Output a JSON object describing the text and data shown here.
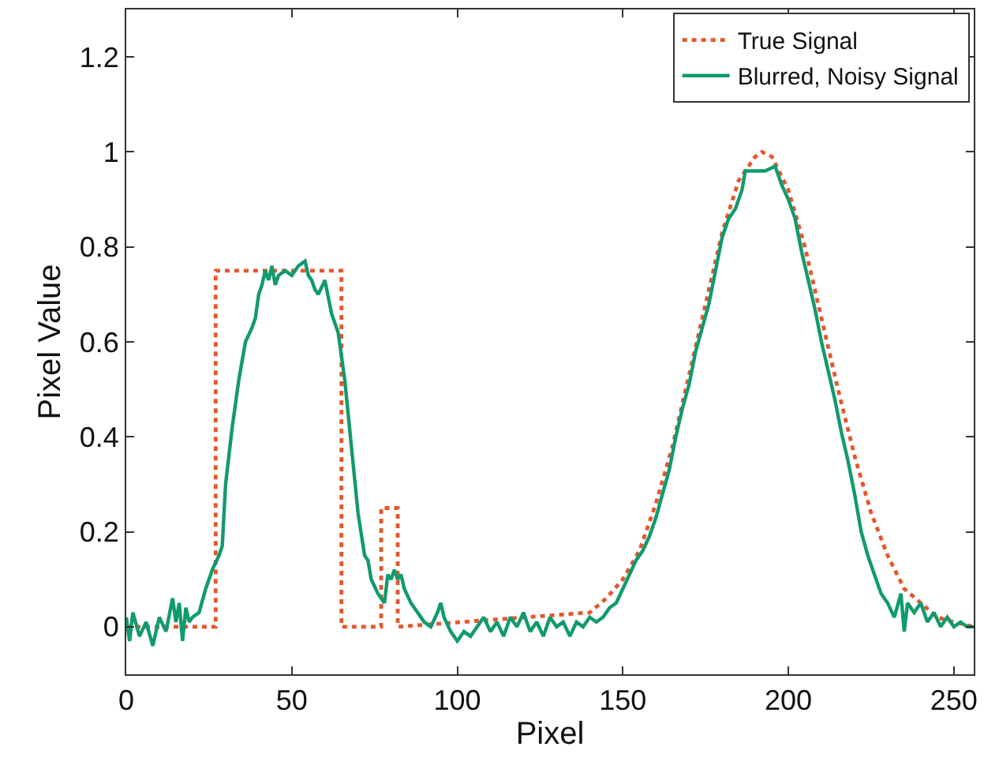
{
  "chart_data": {
    "type": "line",
    "xlabel": "Pixel",
    "ylabel": "Pixel Value",
    "xlim": [
      0,
      256
    ],
    "xticks": [
      0,
      50,
      100,
      150,
      200,
      250
    ],
    "ylim": [
      -0.1,
      1.3
    ],
    "yticks": [
      0,
      0.2,
      0.4,
      0.6,
      0.8,
      1,
      1.2
    ],
    "legend": "top right",
    "marker": "none",
    "series": [
      {
        "name": "True Signal",
        "color": "#e4572e",
        "line_style": "dotted",
        "x": [
          0,
          27,
          27,
          65,
          65,
          77,
          77,
          82,
          82,
          140,
          145,
          150,
          155,
          160,
          165,
          170,
          175,
          180,
          185,
          190,
          192,
          195,
          200,
          205,
          210,
          215,
          220,
          225,
          230,
          235,
          240,
          245,
          250,
          256
        ],
        "values": [
          0,
          0,
          0.75,
          0.75,
          0,
          0,
          0.25,
          0.25,
          0,
          0.03,
          0.06,
          0.1,
          0.16,
          0.26,
          0.38,
          0.53,
          0.68,
          0.83,
          0.94,
          0.99,
          1.0,
          0.99,
          0.92,
          0.8,
          0.65,
          0.5,
          0.36,
          0.24,
          0.15,
          0.08,
          0.05,
          0.02,
          0.01,
          0
        ]
      },
      {
        "name": "Blurred, Noisy Signal",
        "color": "#119a6e",
        "line_style": "solid",
        "x": [
          0,
          1,
          2,
          4,
          6,
          8,
          10,
          12,
          14,
          15,
          16,
          17,
          18,
          19,
          20,
          22,
          24,
          26,
          28,
          29,
          30,
          32,
          34,
          36,
          38,
          39,
          40,
          41,
          42,
          43,
          44,
          45,
          46,
          48,
          50,
          52,
          54,
          55,
          56,
          57,
          58,
          60,
          62,
          64,
          66,
          68,
          70,
          72,
          73,
          74,
          76,
          78,
          79,
          80,
          81,
          82,
          83,
          84,
          86,
          88,
          90,
          92,
          94,
          95,
          96,
          98,
          100,
          102,
          104,
          106,
          108,
          110,
          112,
          114,
          116,
          118,
          120,
          122,
          124,
          126,
          128,
          130,
          132,
          134,
          136,
          138,
          140,
          142,
          144,
          146,
          148,
          150,
          152,
          154,
          156,
          158,
          160,
          162,
          164,
          166,
          168,
          170,
          172,
          174,
          176,
          178,
          180,
          182,
          184,
          186,
          187,
          190,
          193,
          196,
          198,
          200,
          202,
          204,
          206,
          208,
          210,
          212,
          214,
          216,
          218,
          220,
          222,
          224,
          226,
          228,
          230,
          232,
          234,
          235,
          236,
          238,
          240,
          242,
          244,
          246,
          248,
          250,
          252,
          254,
          256
        ],
        "values": [
          0.02,
          -0.03,
          0.03,
          -0.02,
          0.01,
          -0.04,
          0.02,
          -0.01,
          0.06,
          0.01,
          0.05,
          -0.03,
          0.04,
          0.01,
          0.02,
          0.03,
          0.08,
          0.12,
          0.15,
          0.17,
          0.3,
          0.42,
          0.52,
          0.6,
          0.63,
          0.65,
          0.7,
          0.72,
          0.75,
          0.73,
          0.76,
          0.72,
          0.74,
          0.75,
          0.74,
          0.76,
          0.77,
          0.74,
          0.73,
          0.71,
          0.7,
          0.73,
          0.66,
          0.62,
          0.52,
          0.38,
          0.24,
          0.15,
          0.14,
          0.1,
          0.07,
          0.05,
          0.11,
          0.1,
          0.12,
          0.1,
          0.11,
          0.08,
          0.05,
          0.03,
          0.01,
          0.0,
          0.03,
          0.05,
          0.02,
          -0.01,
          -0.03,
          -0.01,
          -0.02,
          0.0,
          0.02,
          -0.01,
          0.01,
          -0.02,
          0.02,
          0.0,
          0.03,
          -0.01,
          0.01,
          -0.02,
          0.02,
          0.0,
          0.01,
          -0.02,
          0.01,
          0.0,
          0.02,
          0.01,
          0.02,
          0.04,
          0.05,
          0.08,
          0.11,
          0.14,
          0.16,
          0.19,
          0.23,
          0.28,
          0.33,
          0.4,
          0.46,
          0.51,
          0.58,
          0.63,
          0.68,
          0.75,
          0.82,
          0.86,
          0.88,
          0.92,
          0.96,
          0.96,
          0.96,
          0.97,
          0.93,
          0.9,
          0.86,
          0.79,
          0.73,
          0.67,
          0.6,
          0.54,
          0.48,
          0.41,
          0.35,
          0.28,
          0.2,
          0.15,
          0.11,
          0.07,
          0.05,
          0.02,
          0.07,
          -0.01,
          0.05,
          0.03,
          0.05,
          0.01,
          0.03,
          0.0,
          0.02,
          0.0,
          0.01,
          0.0,
          0.0
        ]
      }
    ]
  }
}
